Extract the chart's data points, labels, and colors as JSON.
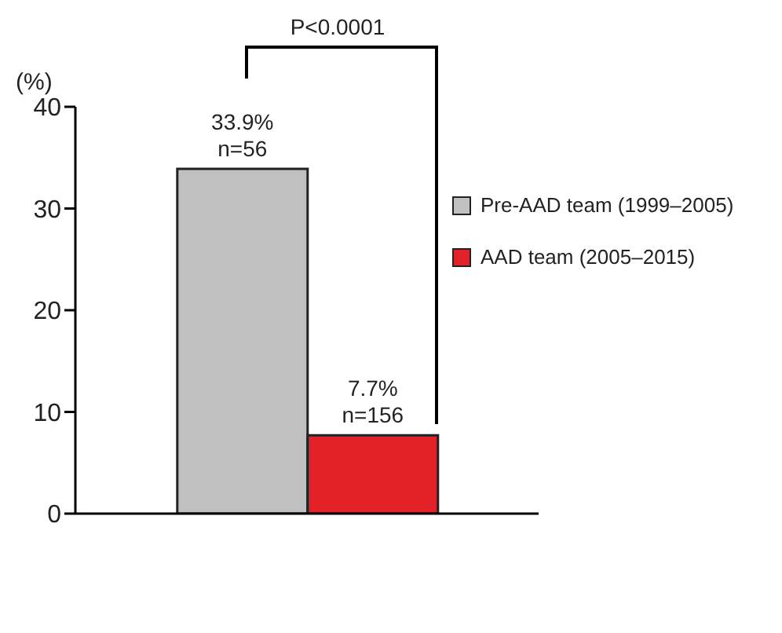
{
  "chart_data": {
    "type": "bar",
    "ylabel": "(%)",
    "categories": [
      null
    ],
    "series": [
      {
        "name": "Pre-AAD team (1999–2005)",
        "color": "#c0c0c0",
        "values": [
          33.9
        ],
        "value_labels": [
          "33.9%\nn=56"
        ]
      },
      {
        "name": "AAD team (2005–2015)",
        "color": "#e32228",
        "values": [
          7.7
        ],
        "value_labels": [
          "7.7%\nn=156"
        ]
      }
    ],
    "ylim": [
      0,
      40
    ],
    "yticks": [
      0,
      10,
      20,
      30,
      40
    ],
    "grid": false,
    "legend": "right",
    "annotations": [
      "P<0.0001"
    ]
  }
}
